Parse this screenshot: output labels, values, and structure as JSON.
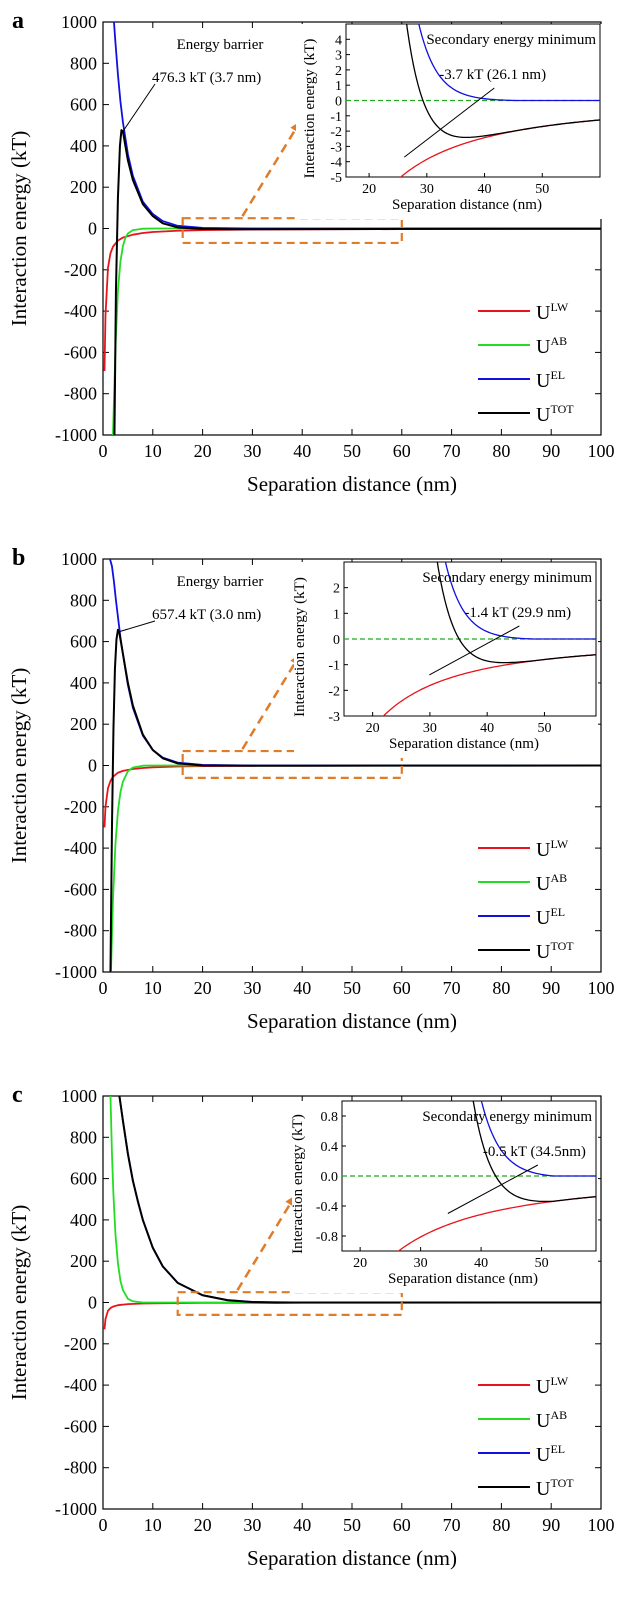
{
  "colors": {
    "lw": "#e8141c",
    "ab": "#22dd22",
    "el": "#1010e0",
    "tot": "#000000",
    "zoom": "#e07b28",
    "zero_line": "#22aa22"
  },
  "legend": [
    {
      "key": "lw",
      "base": "U",
      "sup": "LW"
    },
    {
      "key": "ab",
      "base": "U",
      "sup": "AB"
    },
    {
      "key": "el",
      "base": "U",
      "sup": "EL"
    },
    {
      "key": "tot",
      "base": "U",
      "sup": "TOT"
    }
  ],
  "chart_data": [
    {
      "panel": "a",
      "type": "line",
      "xlabel": "Separation distance (nm)",
      "ylabel": "Interaction energy (kT)",
      "xlim": [
        0,
        100
      ],
      "ylim": [
        -1000,
        1000
      ],
      "xticks": [
        0,
        10,
        20,
        30,
        40,
        50,
        60,
        70,
        80,
        90,
        100
      ],
      "yticks": [
        1000,
        800,
        600,
        400,
        200,
        0,
        -200,
        -400,
        -600,
        -800,
        -1000
      ],
      "annotation_title": "Energy barrier",
      "annotation": "476.3 kT  (3.7 nm)",
      "barrier": {
        "x": 3.7,
        "y": 476.3
      },
      "zoom_box": {
        "x": [
          16,
          60
        ],
        "y": [
          -70,
          50
        ]
      },
      "inset": {
        "title": "Secondary energy minimum",
        "annotation": "-3.7 kT  (26.1 nm)",
        "xlabel": "Separation distance (nm)",
        "ylabel": "Interaction energy  (kT)",
        "xlim": [
          16,
          60
        ],
        "ylim": [
          -5,
          5
        ],
        "xticks": [
          20,
          30,
          40,
          50
        ],
        "yticks": [
          4,
          3,
          2,
          1,
          0,
          -1,
          -2,
          -3,
          -4,
          -5
        ],
        "minimum": {
          "x": 26.1,
          "y": -3.7
        }
      },
      "series": [
        {
          "name": "U^LW",
          "key": "lw",
          "x": [
            0.3,
            0.5,
            1,
            1.5,
            2,
            3,
            4,
            6,
            8,
            10,
            15,
            20,
            30,
            40,
            60,
            100
          ],
          "y": [
            -690,
            -420,
            -190,
            -120,
            -88,
            -58,
            -44,
            -30,
            -22,
            -17,
            -11,
            -8,
            -5,
            -4,
            -3,
            -2
          ]
        },
        {
          "name": "U^AB",
          "key": "ab",
          "x": [
            2,
            2.5,
            3,
            3.5,
            4,
            4.5,
            5,
            6,
            8,
            10,
            20,
            100
          ],
          "y": [
            -1000,
            -580,
            -300,
            -160,
            -85,
            -45,
            -24,
            -8,
            -1,
            0,
            0,
            0
          ]
        },
        {
          "name": "U^EL",
          "key": "el",
          "x": [
            2.2,
            2.5,
            3,
            3.5,
            4,
            5,
            6,
            8,
            10,
            12,
            15,
            20,
            30,
            100
          ],
          "y": [
            1000,
            900,
            745,
            615,
            515,
            360,
            255,
            130,
            70,
            36,
            13,
            3,
            0,
            0
          ]
        },
        {
          "name": "U^TOT",
          "key": "tot",
          "x": [
            2.3,
            2.6,
            3,
            3.4,
            3.7,
            4,
            4.5,
            5,
            6,
            8,
            10,
            12,
            15,
            20,
            26.1,
            40,
            60,
            100
          ],
          "y": [
            -1000,
            -300,
            150,
            400,
            476.3,
            470,
            400,
            330,
            235,
            118,
            60,
            25,
            5,
            -2,
            -3.7,
            -3,
            -2,
            -1
          ]
        }
      ]
    },
    {
      "panel": "b",
      "type": "line",
      "xlabel": "Separation distance (nm)",
      "ylabel": "Interaction energy (kT)",
      "xlim": [
        0,
        100
      ],
      "ylim": [
        -1000,
        1000
      ],
      "xticks": [
        0,
        10,
        20,
        30,
        40,
        50,
        60,
        70,
        80,
        90,
        100
      ],
      "yticks": [
        1000,
        800,
        600,
        400,
        200,
        0,
        -200,
        -400,
        -600,
        -800,
        -1000
      ],
      "annotation_title": "Energy barrier",
      "annotation": "657.4 kT  (3.0 nm)",
      "barrier": {
        "x": 3.0,
        "y": 657.4
      },
      "zoom_box": {
        "x": [
          16,
          60
        ],
        "y": [
          -60,
          70
        ]
      },
      "inset": {
        "title": "Secondary energy minimum",
        "annotation": "-1.4 kT  (29.9 nm)",
        "xlabel": "Separation distance (nm)",
        "ylabel": "Interaction energy (kT)",
        "xlim": [
          15,
          59
        ],
        "ylim": [
          -3,
          3
        ],
        "xticks": [
          20,
          30,
          40,
          50
        ],
        "yticks": [
          2,
          1,
          0,
          -1,
          -2,
          -3
        ],
        "minimum": {
          "x": 29.9,
          "y": -1.4
        }
      },
      "series": [
        {
          "name": "U^LW",
          "key": "lw",
          "x": [
            0.3,
            0.5,
            1,
            1.5,
            2,
            3,
            4,
            6,
            8,
            10,
            15,
            20,
            30,
            40,
            60,
            100
          ],
          "y": [
            -300,
            -200,
            -110,
            -75,
            -55,
            -35,
            -26,
            -17,
            -12,
            -9,
            -5,
            -3,
            -1.4,
            -1,
            -0.6,
            -0.3
          ]
        },
        {
          "name": "U^AB",
          "key": "ab",
          "x": [
            1.6,
            2,
            2.5,
            3,
            3.5,
            4,
            5,
            6,
            8,
            10,
            100
          ],
          "y": [
            -1000,
            -650,
            -380,
            -220,
            -130,
            -78,
            -28,
            -10,
            -1,
            0,
            0
          ]
        },
        {
          "name": "U^EL",
          "key": "el",
          "x": [
            1.4,
            1.8,
            2.2,
            2.6,
            3,
            3.5,
            4,
            5,
            6,
            8,
            10,
            12,
            15,
            20,
            30,
            100
          ],
          "y": [
            1000,
            965,
            890,
            800,
            720,
            620,
            540,
            390,
            280,
            145,
            75,
            38,
            14,
            3,
            0,
            0
          ]
        },
        {
          "name": "U^TOT",
          "key": "tot",
          "x": [
            1.5,
            1.8,
            2.1,
            2.4,
            2.7,
            3,
            3.3,
            3.8,
            4.5,
            5,
            6,
            8,
            10,
            12,
            15,
            20,
            29.9,
            40,
            60,
            100
          ],
          "y": [
            -1000,
            -300,
            180,
            470,
            610,
            657.4,
            640,
            570,
            470,
            400,
            290,
            150,
            75,
            35,
            10,
            0,
            -1.4,
            -1,
            -0.6,
            -0.3
          ]
        }
      ]
    },
    {
      "panel": "c",
      "type": "line",
      "xlabel": "Separation distance (nm)",
      "ylabel": "Interaction energy (kT)",
      "xlim": [
        0,
        100
      ],
      "ylim": [
        -1000,
        1000
      ],
      "xticks": [
        0,
        10,
        20,
        30,
        40,
        50,
        60,
        70,
        80,
        90,
        100
      ],
      "yticks": [
        1000,
        800,
        600,
        400,
        200,
        0,
        -200,
        -400,
        -600,
        -800,
        -1000
      ],
      "zoom_box": {
        "x": [
          15,
          60
        ],
        "y": [
          -60,
          50
        ]
      },
      "inset": {
        "title": "Secondary energy minimum",
        "annotation": "-0.5 kT  (34.5nm)",
        "xlabel": "Separation distance (nm)",
        "ylabel": "Interaction energy (kT)",
        "xlim": [
          17,
          59
        ],
        "ylim": [
          -1.0,
          1.0
        ],
        "xticks": [
          20,
          30,
          40,
          50
        ],
        "ytick_labels": [
          "0.8",
          "0.4",
          "0.0",
          "-0.4",
          "-0.8"
        ],
        "yticks": [
          0.8,
          0.4,
          0.0,
          -0.4,
          -0.8
        ],
        "minimum": {
          "x": 34.5,
          "y": -0.5
        }
      },
      "series": [
        {
          "name": "U^LW",
          "key": "lw",
          "x": [
            0.3,
            0.5,
            1,
            1.5,
            2,
            3,
            5,
            8,
            10,
            20,
            40,
            100
          ],
          "y": [
            -130,
            -80,
            -40,
            -27,
            -20,
            -13,
            -8,
            -5,
            -4,
            -2,
            -1,
            -0.3
          ]
        },
        {
          "name": "U^AB",
          "key": "ab",
          "x": [
            1.5,
            1.8,
            2.1,
            2.5,
            3,
            3.5,
            4,
            5,
            6,
            8,
            100
          ],
          "y": [
            1000,
            720,
            520,
            330,
            190,
            105,
            60,
            18,
            6,
            0,
            0
          ]
        },
        {
          "name": "U^EL",
          "key": "el",
          "x": [
            3.3,
            4,
            5,
            6,
            7,
            8,
            10,
            12,
            15,
            20,
            25,
            30,
            40,
            100
          ],
          "y": [
            1000,
            880,
            720,
            590,
            490,
            400,
            265,
            175,
            95,
            35,
            12,
            3,
            0,
            0
          ]
        },
        {
          "name": "U^TOT",
          "key": "tot",
          "x": [
            3.3,
            4,
            5,
            6,
            7,
            8,
            10,
            12,
            15,
            20,
            25,
            30,
            34.5,
            40,
            60,
            100
          ],
          "y": [
            1000,
            880,
            720,
            590,
            490,
            400,
            265,
            175,
            95,
            35,
            11,
            2,
            -0.5,
            -0.3,
            -0.1,
            0
          ]
        }
      ]
    }
  ]
}
